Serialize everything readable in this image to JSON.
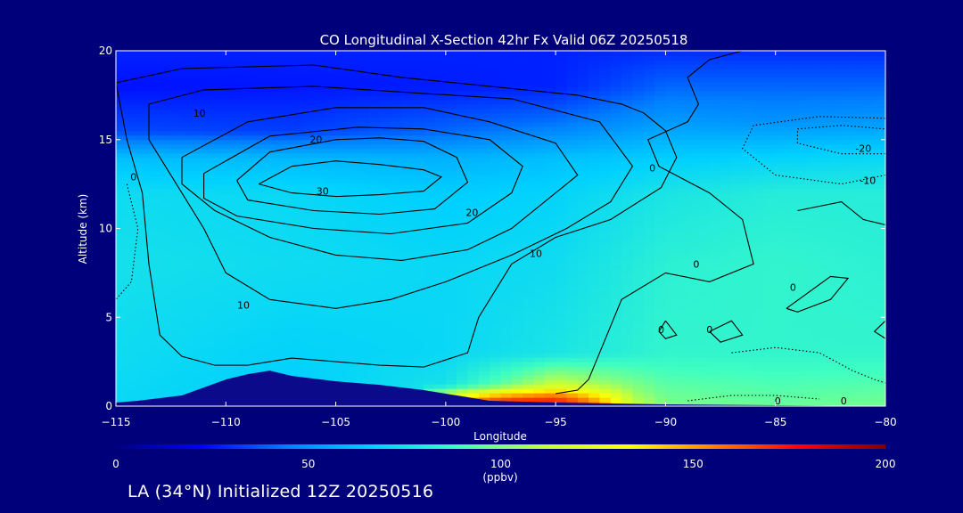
{
  "chart_data": {
    "type": "heatmap",
    "title": "CO Longitudinal X-Section 42hr  Fx Valid 06Z 20250518",
    "xlabel": "Longitude",
    "ylabel": "Altitude (km)",
    "xlim": [
      -115,
      -80
    ],
    "ylim": [
      0,
      20
    ],
    "x_ticks": [
      -115,
      -110,
      -105,
      -100,
      -95,
      -90,
      -85,
      -80
    ],
    "x_tick_labels": [
      "−115",
      "−110",
      "−105",
      "−100",
      "−95",
      "−90",
      "−85",
      "−80"
    ],
    "y_ticks": [
      0,
      5,
      10,
      15,
      20
    ],
    "y_tick_labels": [
      "0",
      "5",
      "10",
      "15",
      "20"
    ],
    "colorbar": {
      "min": 0,
      "max": 200,
      "ticks": [
        0,
        50,
        100,
        150,
        200
      ],
      "tick_labels": [
        "0",
        "50",
        "100",
        "150",
        "200"
      ],
      "unit": "(ppbv)",
      "colors": [
        "#00007f",
        "#0000ff",
        "#0080ff",
        "#00d0ff",
        "#40ffc0",
        "#c0ff40",
        "#ffff00",
        "#ff8000",
        "#ff0000",
        "#800000"
      ]
    },
    "field_columns": [
      {
        "lon": -115,
        "levels": [
          {
            "alt": 0,
            "ppbv": 70
          },
          {
            "alt": 3,
            "ppbv": 72
          },
          {
            "alt": 8,
            "ppbv": 74
          },
          {
            "alt": 12,
            "ppbv": 72
          },
          {
            "alt": 14,
            "ppbv": 62
          },
          {
            "alt": 15.5,
            "ppbv": 35
          },
          {
            "alt": 18,
            "ppbv": 25
          },
          {
            "alt": 20,
            "ppbv": 28
          }
        ]
      },
      {
        "lon": -107,
        "levels": [
          {
            "alt": 0,
            "ppbv": 66
          },
          {
            "alt": 3,
            "ppbv": 68
          },
          {
            "alt": 8,
            "ppbv": 72
          },
          {
            "alt": 12,
            "ppbv": 70
          },
          {
            "alt": 14,
            "ppbv": 60
          },
          {
            "alt": 15.5,
            "ppbv": 33
          },
          {
            "alt": 18,
            "ppbv": 26
          },
          {
            "alt": 20,
            "ppbv": 28
          }
        ]
      },
      {
        "lon": -100,
        "levels": [
          {
            "alt": 0,
            "ppbv": 78
          },
          {
            "alt": 3,
            "ppbv": 70
          },
          {
            "alt": 8,
            "ppbv": 70
          },
          {
            "alt": 12,
            "ppbv": 66
          },
          {
            "alt": 14,
            "ppbv": 58
          },
          {
            "alt": 15.5,
            "ppbv": 40
          },
          {
            "alt": 18,
            "ppbv": 27
          },
          {
            "alt": 20,
            "ppbv": 28
          }
        ]
      },
      {
        "lon": -95,
        "levels": [
          {
            "alt": 0,
            "ppbv": 150
          },
          {
            "alt": 1,
            "ppbv": 120
          },
          {
            "alt": 3,
            "ppbv": 76
          },
          {
            "alt": 8,
            "ppbv": 72
          },
          {
            "alt": 12,
            "ppbv": 68
          },
          {
            "alt": 14,
            "ppbv": 62
          },
          {
            "alt": 16,
            "ppbv": 42
          },
          {
            "alt": 18,
            "ppbv": 28
          },
          {
            "alt": 20,
            "ppbv": 28
          }
        ]
      },
      {
        "lon": -90,
        "levels": [
          {
            "alt": 0,
            "ppbv": 100
          },
          {
            "alt": 3,
            "ppbv": 84
          },
          {
            "alt": 8,
            "ppbv": 82
          },
          {
            "alt": 12,
            "ppbv": 76
          },
          {
            "alt": 14,
            "ppbv": 66
          },
          {
            "alt": 16,
            "ppbv": 52
          },
          {
            "alt": 18,
            "ppbv": 40
          },
          {
            "alt": 20,
            "ppbv": 30
          }
        ]
      },
      {
        "lon": -85,
        "levels": [
          {
            "alt": 0,
            "ppbv": 96
          },
          {
            "alt": 3,
            "ppbv": 84
          },
          {
            "alt": 8,
            "ppbv": 84
          },
          {
            "alt": 12,
            "ppbv": 80
          },
          {
            "alt": 14,
            "ppbv": 68
          },
          {
            "alt": 16,
            "ppbv": 50
          },
          {
            "alt": 18,
            "ppbv": 40
          },
          {
            "alt": 20,
            "ppbv": 30
          }
        ]
      },
      {
        "lon": -80,
        "levels": [
          {
            "alt": 0,
            "ppbv": 98
          },
          {
            "alt": 3,
            "ppbv": 84
          },
          {
            "alt": 8,
            "ppbv": 82
          },
          {
            "alt": 12,
            "ppbv": 80
          },
          {
            "alt": 14,
            "ppbv": 70
          },
          {
            "alt": 16,
            "ppbv": 52
          },
          {
            "alt": 18,
            "ppbv": 40
          },
          {
            "alt": 20,
            "ppbv": 30
          }
        ]
      }
    ],
    "hotspot": {
      "lon_range": [
        -101,
        -90
      ],
      "alt_max": 1.2,
      "peak_lon": -97,
      "peak_ppbv": 190
    },
    "terrain_top_km": [
      [
        -115,
        0.2
      ],
      [
        -114,
        0.3
      ],
      [
        -112,
        0.6
      ],
      [
        -110,
        1.5
      ],
      [
        -109,
        1.8
      ],
      [
        -108,
        2.0
      ],
      [
        -107,
        1.7
      ],
      [
        -105,
        1.4
      ],
      [
        -103,
        1.2
      ],
      [
        -101,
        0.9
      ],
      [
        -99.5,
        0.6
      ],
      [
        -98,
        0.3
      ],
      [
        -95,
        0.2
      ],
      [
        -90,
        0.1
      ],
      [
        -85,
        0.05
      ],
      [
        -80,
        0
      ]
    ],
    "contours": [
      {
        "level": "30",
        "style": "solid",
        "points": [
          [
            -108.5,
            12.5
          ],
          [
            -107,
            13.5
          ],
          [
            -105,
            13.8
          ],
          [
            -103,
            13.6
          ],
          [
            -101,
            13.3
          ],
          [
            -100.2,
            12.9
          ],
          [
            -101,
            12.1
          ],
          [
            -103,
            11.9
          ],
          [
            -105,
            11.8
          ],
          [
            -107,
            12
          ],
          [
            -108.5,
            12.5
          ]
        ]
      },
      {
        "level": "20",
        "style": "solid",
        "points": [
          [
            -109.5,
            12.7
          ],
          [
            -108,
            14.3
          ],
          [
            -105,
            15
          ],
          [
            -103,
            15.1
          ],
          [
            -101,
            14.9
          ],
          [
            -99.5,
            14
          ],
          [
            -99,
            12.6
          ],
          [
            -100.5,
            11.1
          ],
          [
            -103,
            10.8
          ],
          [
            -106,
            11
          ],
          [
            -109,
            11.6
          ],
          [
            -109.5,
            12.7
          ]
        ]
      },
      {
        "level": "20",
        "style": "solid",
        "points": [
          [
            -111,
            13.1
          ],
          [
            -108,
            15.2
          ],
          [
            -104,
            15.7
          ],
          [
            -101,
            15.6
          ],
          [
            -98,
            15
          ],
          [
            -96.5,
            13.5
          ],
          [
            -97,
            12
          ],
          [
            -99,
            10.3
          ],
          [
            -102.5,
            9.7
          ],
          [
            -106,
            10
          ],
          [
            -109.5,
            10.7
          ],
          [
            -111,
            11.7
          ],
          [
            -111,
            13.1
          ]
        ]
      },
      {
        "level": "10",
        "style": "solid",
        "points": [
          [
            -112,
            14
          ],
          [
            -109,
            16
          ],
          [
            -105,
            16.8
          ],
          [
            -101,
            16.8
          ],
          [
            -98,
            16
          ],
          [
            -95,
            14.8
          ],
          [
            -94,
            13
          ],
          [
            -95.5,
            11.5
          ],
          [
            -97,
            10
          ],
          [
            -99,
            8.8
          ],
          [
            -102,
            8.2
          ],
          [
            -105,
            8.5
          ],
          [
            -108,
            9.5
          ],
          [
            -110.5,
            11
          ],
          [
            -112,
            12.5
          ],
          [
            -112,
            14
          ]
        ]
      },
      {
        "level": "10",
        "style": "solid",
        "points": [
          [
            -113.5,
            17
          ],
          [
            -111,
            17.8
          ],
          [
            -106,
            18
          ],
          [
            -101,
            17.6
          ],
          [
            -97,
            17.3
          ],
          [
            -93,
            16
          ],
          [
            -91.5,
            13.5
          ],
          [
            -92.5,
            11.5
          ],
          [
            -94.5,
            10
          ],
          [
            -97,
            8.5
          ],
          [
            -100,
            7
          ],
          [
            -102.5,
            6
          ],
          [
            -105,
            5.5
          ],
          [
            -108,
            6
          ],
          [
            -110,
            7.5
          ],
          [
            -111,
            10
          ],
          [
            -112.5,
            13
          ],
          [
            -113.5,
            15
          ],
          [
            -113.5,
            17
          ]
        ]
      },
      {
        "level": "10",
        "style": "solid",
        "points": [
          [
            -115,
            18.2
          ],
          [
            -112,
            19
          ],
          [
            -106,
            19.2
          ],
          [
            -102,
            18.5
          ],
          [
            -98,
            18
          ],
          [
            -94,
            17.5
          ],
          [
            -92,
            17
          ],
          [
            -91,
            16.5
          ],
          [
            -90,
            15.5
          ],
          [
            -89.5,
            14
          ],
          [
            -90.2,
            12.3
          ],
          [
            -92.5,
            10.5
          ],
          [
            -95,
            9.5
          ],
          [
            -97,
            8
          ],
          [
            -98.5,
            5
          ],
          [
            -99,
            3
          ],
          [
            -101,
            2.2
          ],
          [
            -103,
            2.3
          ],
          [
            -105,
            2.5
          ],
          [
            -107,
            2.7
          ],
          [
            -109,
            2.3
          ],
          [
            -110.5,
            2.3
          ],
          [
            -112,
            2.8
          ],
          [
            -113,
            4
          ],
          [
            -113.5,
            8
          ],
          [
            -113.8,
            12
          ],
          [
            -114.5,
            15
          ],
          [
            -115,
            18.2
          ]
        ]
      },
      {
        "level": "0",
        "style": "solid",
        "points": [
          [
            -86.5,
            20
          ],
          [
            -88,
            19.5
          ],
          [
            -89,
            18.5
          ],
          [
            -88.5,
            17
          ],
          [
            -89,
            16
          ],
          [
            -90.8,
            15
          ],
          [
            -90.3,
            13.5
          ],
          [
            -88,
            12
          ],
          [
            -86.5,
            10.5
          ],
          [
            -86,
            8
          ],
          [
            -88,
            7
          ],
          [
            -90,
            7.5
          ],
          [
            -92,
            6
          ],
          [
            -92.5,
            4.5
          ],
          [
            -93,
            3
          ],
          [
            -93.5,
            1.5
          ],
          [
            -94,
            0.9
          ],
          [
            -95,
            0.7
          ]
        ]
      },
      {
        "level": "0",
        "style": "solid",
        "points": [
          [
            -90,
            4.8
          ],
          [
            -90.3,
            4.2
          ],
          [
            -90,
            3.8
          ],
          [
            -89.5,
            4
          ],
          [
            -90,
            4.8
          ]
        ]
      },
      {
        "level": "0",
        "style": "solid",
        "points": [
          [
            -88,
            4.2
          ],
          [
            -87,
            4.8
          ],
          [
            -86.5,
            4
          ],
          [
            -87.5,
            3.6
          ],
          [
            -88,
            4.2
          ]
        ]
      },
      {
        "level": "0",
        "style": "solid",
        "points": [
          [
            -84.5,
            5.5
          ],
          [
            -82.5,
            7.3
          ],
          [
            -81.7,
            7.2
          ],
          [
            -82.5,
            6
          ],
          [
            -84,
            5.3
          ],
          [
            -84.5,
            5.5
          ]
        ]
      },
      {
        "level": "0",
        "style": "solid",
        "points": [
          [
            -80,
            4.8
          ],
          [
            -80.5,
            4.2
          ],
          [
            -80,
            3.8
          ]
        ]
      },
      {
        "level": "0",
        "style": "solid",
        "points": [
          [
            -84,
            11
          ],
          [
            -82,
            11.5
          ],
          [
            -81,
            10.5
          ],
          [
            -80,
            10.2
          ]
        ]
      },
      {
        "level": "-10",
        "style": "dotted",
        "points": [
          [
            -80,
            13
          ],
          [
            -82,
            12.5
          ],
          [
            -85,
            13
          ],
          [
            -86.5,
            14.5
          ],
          [
            -86,
            15.8
          ],
          [
            -83,
            16.3
          ],
          [
            -80,
            16.2
          ]
        ]
      },
      {
        "level": "-20",
        "style": "dotted",
        "points": [
          [
            -80,
            14.2
          ],
          [
            -82,
            14.2
          ],
          [
            -84,
            14.8
          ],
          [
            -84,
            15.6
          ],
          [
            -82,
            15.8
          ],
          [
            -80,
            15.6
          ]
        ]
      },
      {
        "level": "-10",
        "style": "dotted",
        "points": [
          [
            -114.5,
            12.5
          ],
          [
            -114,
            10
          ],
          [
            -114.3,
            7
          ],
          [
            -115,
            6
          ]
        ]
      },
      {
        "level": "0",
        "style": "dotted",
        "points": [
          [
            -87,
            3
          ],
          [
            -85,
            3.3
          ],
          [
            -83,
            3
          ],
          [
            -81.5,
            2
          ],
          [
            -80.5,
            1.5
          ],
          [
            -80,
            1.3
          ]
        ]
      },
      {
        "level": "0",
        "style": "dotted",
        "points": [
          [
            -89,
            0.3
          ],
          [
            -87,
            0.6
          ],
          [
            -85,
            0.6
          ],
          [
            -83,
            0.4
          ]
        ]
      }
    ],
    "contour_labels": [
      {
        "text": "30",
        "lon": -105.6,
        "alt": 11.9
      },
      {
        "text": "20",
        "lon": -105.9,
        "alt": 14.8
      },
      {
        "text": "20",
        "lon": -98.8,
        "alt": 10.7
      },
      {
        "text": "10",
        "lon": -95.9,
        "alt": 8.4
      },
      {
        "text": "10",
        "lon": -109.2,
        "alt": 5.5
      },
      {
        "text": "10",
        "lon": -111.2,
        "alt": 16.3
      },
      {
        "text": "0",
        "lon": -114.2,
        "alt": 12.7
      },
      {
        "text": "0",
        "lon": -90.6,
        "alt": 13.2
      },
      {
        "text": "0",
        "lon": -88.6,
        "alt": 7.8
      },
      {
        "text": "0",
        "lon": -84.2,
        "alt": 6.5
      },
      {
        "text": "0",
        "lon": -90.2,
        "alt": 4.1
      },
      {
        "text": "0",
        "lon": -88.0,
        "alt": 4.1
      },
      {
        "text": "0",
        "lon": -84.9,
        "alt": 0.1
      },
      {
        "text": "0",
        "lon": -81.9,
        "alt": 0.1
      },
      {
        "text": "-20",
        "lon": -81.0,
        "alt": 14.3
      },
      {
        "text": "-10",
        "lon": -80.8,
        "alt": 12.5
      }
    ]
  },
  "colorbar_unit": "(ppbv)",
  "footer": "LA (34°N) Initialized 12Z 20250516"
}
